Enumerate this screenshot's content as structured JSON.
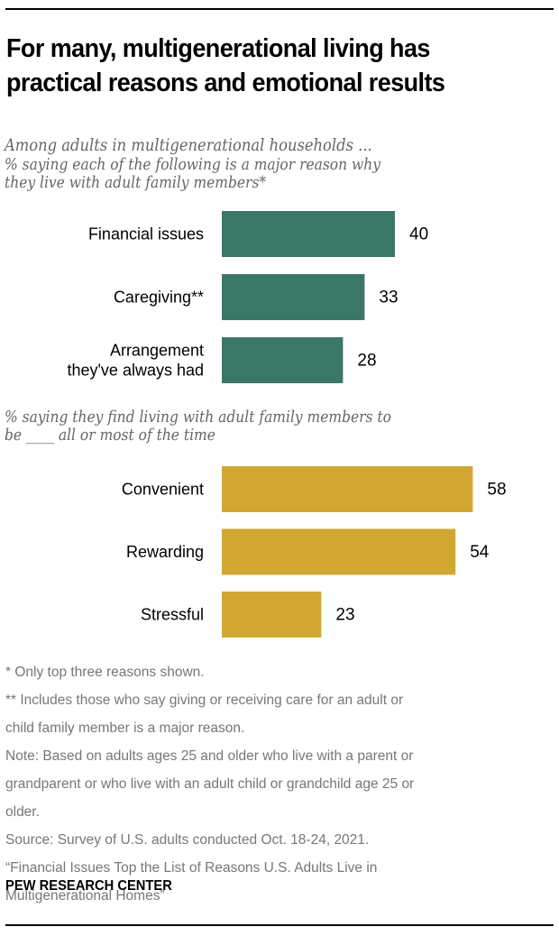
{
  "title": "For many, multigenerational living has practical reasons and emotional results",
  "title_lines": [
    "For many, multigenerational living has",
    "practical reasons and emotional results"
  ],
  "subtitle": "Among adults in multigenerational households ...",
  "colors": {
    "reasons": "#3b7767",
    "feelings": "#d1a731"
  },
  "chart_data": [
    {
      "type": "bar",
      "orientation": "horizontal",
      "title_lines": [
        "% saying each of the following is a major reason why",
        "they live with adult family members*"
      ],
      "categories": [
        [
          "Financial issues"
        ],
        [
          "Caregiving**"
        ],
        [
          "Arrangement",
          "they've always had"
        ]
      ],
      "values": [
        40,
        33,
        28
      ],
      "value_labels": [
        "40",
        "33",
        "28"
      ],
      "color": "#3b7767",
      "xlabel": "",
      "ylabel": "",
      "xlim": [
        0,
        100
      ],
      "grid": false
    },
    {
      "type": "bar",
      "orientation": "horizontal",
      "title_lines": [
        "% saying they find living with adult family members to",
        "be ____ all or most of the time"
      ],
      "categories": [
        [
          "Convenient"
        ],
        [
          "Rewarding"
        ],
        [
          "Stressful"
        ]
      ],
      "values": [
        58,
        54,
        23
      ],
      "value_labels": [
        "58",
        "54",
        "23"
      ],
      "color": "#d1a731",
      "xlabel": "",
      "ylabel": "",
      "xlim": [
        0,
        100
      ],
      "grid": false
    }
  ],
  "notes": [
    "* Only top three reasons shown.",
    "** Includes those who say giving or receiving care for an adult or\nchild family member is a major reason.",
    "Note: Based on adults ages 25 and older who live with a parent or\ngrandparent or who live with an adult child or grandchild age 25 or\nolder.",
    "Source: Survey of U.S. adults conducted Oct. 18-24, 2021.",
    "“Financial Issues Top the List of Reasons U.S. Adults Live in\nMultigenerational Homes”"
  ],
  "brand": "PEW RESEARCH CENTER"
}
